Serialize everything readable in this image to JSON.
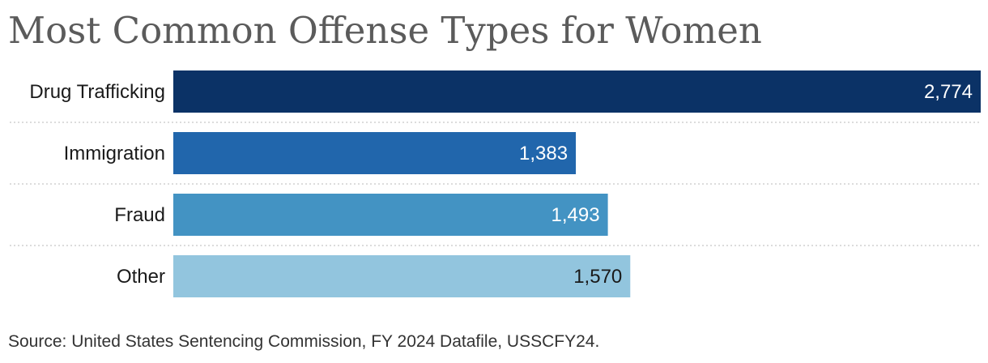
{
  "chart_data": {
    "type": "bar",
    "orientation": "horizontal",
    "title": "Most Common Offense Types for Women",
    "categories": [
      "Drug Trafficking",
      "Immigration",
      "Fraud",
      "Other"
    ],
    "values": [
      2774,
      1383,
      1493,
      1570
    ],
    "value_labels": [
      "2,774",
      "1,383",
      "1,493",
      "1,570"
    ],
    "colors": [
      "#0b3266",
      "#2166ac",
      "#4393c3",
      "#92c5de"
    ],
    "label_colors": [
      "#ffffff",
      "#ffffff",
      "#ffffff",
      "#1a1a1a"
    ],
    "xlim": [
      0,
      2774
    ],
    "xlabel": "",
    "ylabel": "",
    "grid": false,
    "legend": "none"
  },
  "source": "Source: United States Sentencing Commission, FY 2024 Datafile, USSCFY24."
}
